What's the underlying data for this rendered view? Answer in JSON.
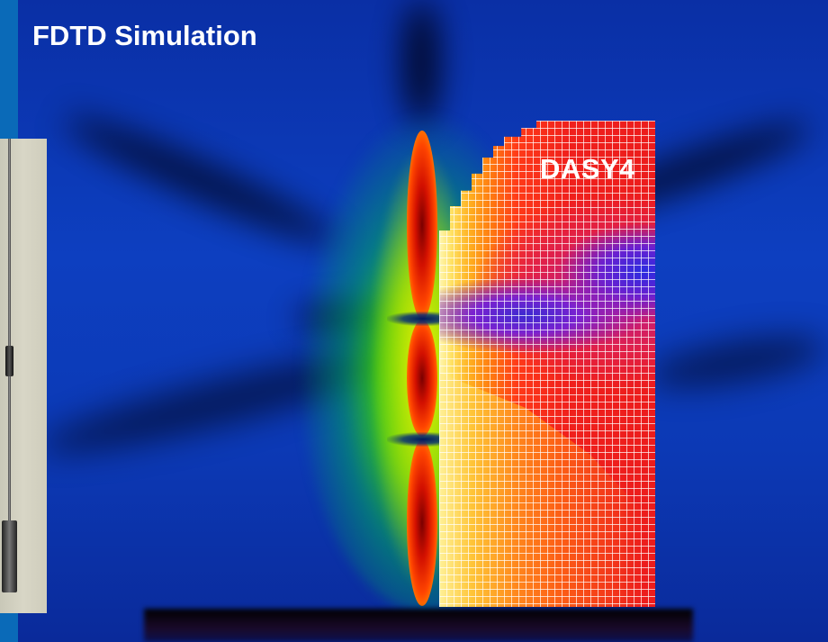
{
  "slide": {
    "title": "FDTD Simulation",
    "measurement_label": "DASY4"
  },
  "colors": {
    "slide_background": "#0b63b4",
    "field_background": "#0d3fc0",
    "field_high": "#ff2000",
    "field_mid": "#14e614",
    "dasy_high": "#ec1c1c",
    "dasy_low": "#3a2ad0",
    "text": "#ffffff"
  },
  "images": [
    {
      "name": "antenna-photo",
      "description_icon": "antenna-photo-icon"
    },
    {
      "name": "fdtd-field-map",
      "description_icon": "field-map-icon"
    },
    {
      "name": "dasy4-measurement-grid",
      "description_icon": "grid-icon"
    }
  ]
}
